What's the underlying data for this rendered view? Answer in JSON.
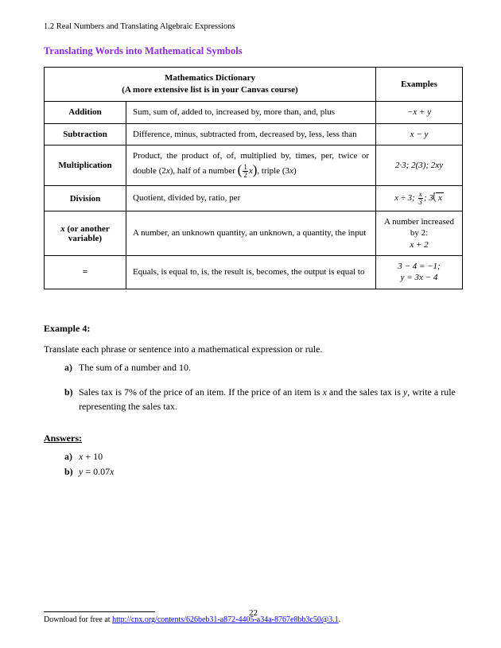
{
  "header": "1.2 Real Numbers and Translating Algebraic Expressions",
  "section_title": "Translating Words into Mathematical Symbols",
  "table": {
    "header_main_line1": "Mathematics Dictionary",
    "header_main_line2": "(A more extensive list is in your Canvas course)",
    "header_examples": "Examples",
    "rows": [
      {
        "op": "Addition",
        "desc": "Sum, sum of, added to, increased by, more than, and, plus",
        "ex_html": "−<i>x</i> + <i>y</i>"
      },
      {
        "op": "Subtraction",
        "desc": "Difference, minus, subtracted from, decreased by, less, less than",
        "ex_html": "<i>x</i> − <i>y</i>"
      },
      {
        "op": "Multiplication",
        "desc_html": "Product, the product of, of, multiplied by, times, per, twice or double (2<i>x</i>), half of a number <span class=\"paren-frac\"><span class=\"frac\"><span class=\"num\">1</span><span class=\"den\">2</span></span><i>x</i></span>, triple (3<i>x</i>)",
        "ex_html": "2·3; 2(3); 2<i>xy</i>"
      },
      {
        "op": "Division",
        "desc": "Quotient, divided by, ratio, per",
        "ex_html": "<i>x</i> ÷ 3; <span class=\"frac\"><span class=\"num\"><i>x</i></span><span class=\"den\">3</span></span>; 3<span class=\"longdiv\"><span class=\"divinner\"><i>x</i></span></span>"
      },
      {
        "op_html": "<i>x</i> (or another variable)",
        "desc": "A number, an unknown quantity, an unknown, a quantity, the input",
        "ex_html": "<span class=\"upright\">A number increased by 2:</span><br><i>x</i> + 2"
      },
      {
        "op": "=",
        "desc": "Equals, is equal to, is, the result is, becomes, the output is equal to",
        "ex_html": "3 − 4 = −1;<br><i>y</i> = 3<i>x</i> − 4"
      }
    ]
  },
  "example": {
    "label": "Example 4:",
    "intro": "Translate each phrase or sentence into a mathematical expression or rule.",
    "items": [
      {
        "marker": "a)",
        "text": "The sum of a number and 10."
      },
      {
        "marker": "b)",
        "text_html": "Sales tax is 7% of the price of an item. If the price of an item is <i>x</i> and the sales tax is <i>y</i>, write a rule representing the sales tax."
      }
    ]
  },
  "answers": {
    "label": "Answers:",
    "items": [
      {
        "marker": "a)",
        "html": "<i>x</i> + 10"
      },
      {
        "marker": "b)",
        "html": "<i>y</i> = 0.07<i>x</i>"
      }
    ]
  },
  "footnote": {
    "prefix": "Download for free at ",
    "url_text": "http://cnx.org/contents/626beb31-a872-4405-a34a-8767e8bb3c50@3.1",
    "suffix": "."
  },
  "page_number": "22"
}
